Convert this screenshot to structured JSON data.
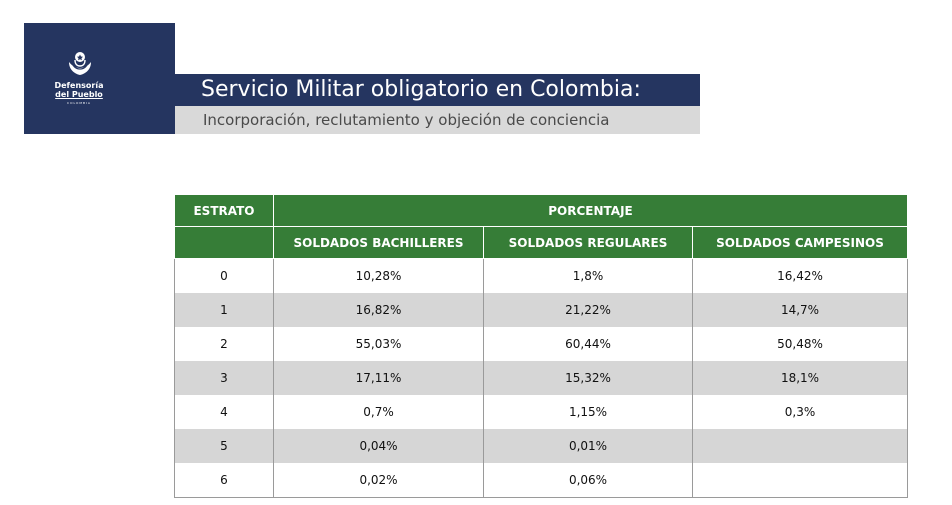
{
  "logo": {
    "line1": "Defensoría",
    "line2": "del Pueblo",
    "line3": "COLOMBIA"
  },
  "header": {
    "title": "Servicio Militar obligatorio en Colombia:",
    "subtitle": "Incorporación, reclutamiento y objeción de conciencia"
  },
  "colors": {
    "navy": "#253560",
    "green": "#367d37",
    "stripe": "#d6d6d6",
    "subtitle_bg": "#d9d9d9"
  },
  "table": {
    "estrato_header": "ESTRATO",
    "porcentaje_header": "PORCENTAJE",
    "columns": [
      "SOLDADOS BACHILLERES",
      "SOLDADOS REGULARES",
      "SOLDADOS CAMPESINOS"
    ],
    "rows": [
      {
        "estrato": "0",
        "bachilleres": "10,28%",
        "regulares": "1,8%",
        "campesinos": "16,42%"
      },
      {
        "estrato": "1",
        "bachilleres": "16,82%",
        "regulares": "21,22%",
        "campesinos": "14,7%"
      },
      {
        "estrato": "2",
        "bachilleres": "55,03%",
        "regulares": "60,44%",
        "campesinos": "50,48%"
      },
      {
        "estrato": "3",
        "bachilleres": "17,11%",
        "regulares": "15,32%",
        "campesinos": "18,1%"
      },
      {
        "estrato": "4",
        "bachilleres": "0,7%",
        "regulares": "1,15%",
        "campesinos": "0,3%"
      },
      {
        "estrato": "5",
        "bachilleres": "0,04%",
        "regulares": "0,01%",
        "campesinos": ""
      },
      {
        "estrato": "6",
        "bachilleres": "0,02%",
        "regulares": "0,06%",
        "campesinos": ""
      }
    ]
  }
}
